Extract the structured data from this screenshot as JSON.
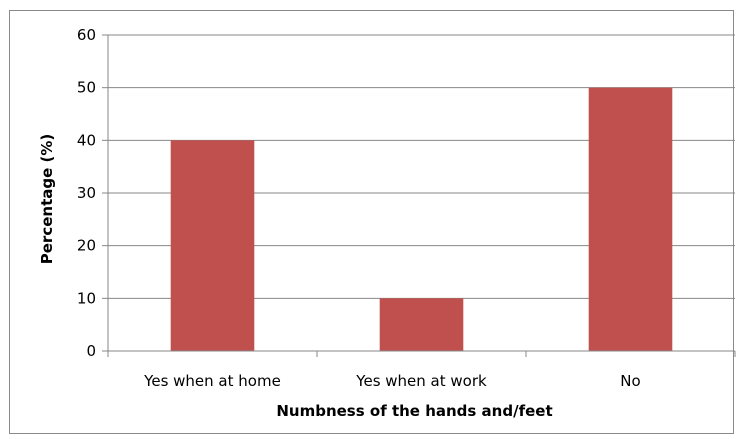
{
  "chart_data": {
    "type": "bar",
    "categories": [
      "Yes when at home",
      "Yes when at work",
      "No"
    ],
    "values": [
      40,
      10,
      50
    ],
    "title": "",
    "xlabel": "Numbness of the hands and/feet",
    "ylabel": "Percentage (%)",
    "ylim": [
      0,
      60
    ],
    "yticks": [
      "0",
      "10",
      "20",
      "30",
      "40",
      "50",
      "60"
    ],
    "grid": true,
    "legend": "none",
    "colors": {
      "bar": "#C0504D",
      "grid": "#878787",
      "axis": "#878787"
    }
  }
}
